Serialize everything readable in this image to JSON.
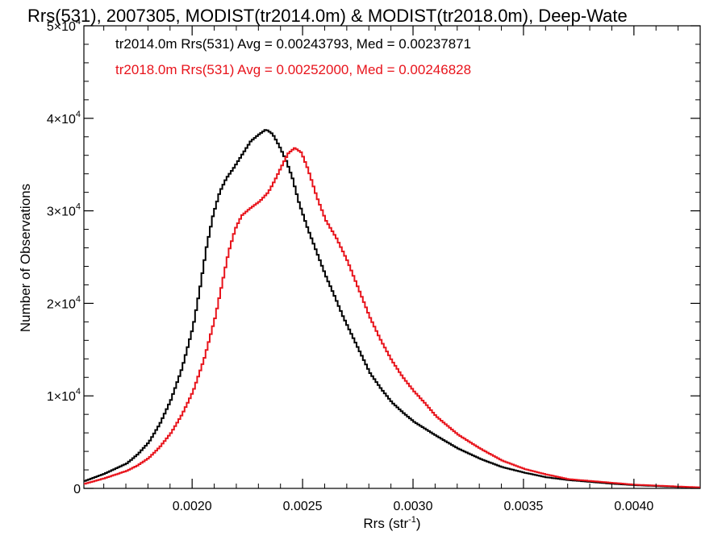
{
  "chart_data": {
    "type": "line",
    "step": true,
    "title": "Rrs(531), 2007305, MODIST(tr2014.0m) & MODIST(tr2018.0m), Deep-Wate",
    "xlabel": "Rrs (str",
    "xlabel_sup": "-1",
    "xlabel_close": ")",
    "ylabel": "Number of Observations",
    "xlim": [
      0.00151,
      0.0043
    ],
    "ylim": [
      0,
      50000
    ],
    "x_ticks": [
      {
        "value": 0.002,
        "label": "0.0020"
      },
      {
        "value": 0.0025,
        "label": "0.0025"
      },
      {
        "value": 0.003,
        "label": "0.0030"
      },
      {
        "value": 0.0035,
        "label": "0.0035"
      },
      {
        "value": 0.004,
        "label": "0.0040"
      }
    ],
    "y_ticks": [
      {
        "value": 0,
        "mant": "0",
        "exp": ""
      },
      {
        "value": 10000,
        "mant": "1×10",
        "exp": "4"
      },
      {
        "value": 20000,
        "mant": "2×10",
        "exp": "4"
      },
      {
        "value": 30000,
        "mant": "3×10",
        "exp": "4"
      },
      {
        "value": 40000,
        "mant": "4×10",
        "exp": "4"
      },
      {
        "value": 50000,
        "mant": "5×10",
        "exp": "4"
      }
    ],
    "grid": false,
    "legend_position": "top-left",
    "series": [
      {
        "name": "tr2014.0m Rrs(531) Avg = 0.00243793, Med = 0.00237871",
        "color": "#000000",
        "points": [
          [
            0.00151,
            800
          ],
          [
            0.0016,
            1600
          ],
          [
            0.0017,
            2700
          ],
          [
            0.00175,
            3700
          ],
          [
            0.0018,
            5000
          ],
          [
            0.00185,
            7000
          ],
          [
            0.0019,
            9600
          ],
          [
            0.00195,
            13000
          ],
          [
            0.002,
            17500
          ],
          [
            0.00203,
            21500
          ],
          [
            0.00206,
            26000
          ],
          [
            0.00209,
            29500
          ],
          [
            0.00212,
            32000
          ],
          [
            0.00215,
            33500
          ],
          [
            0.00218,
            34500
          ],
          [
            0.00222,
            36000
          ],
          [
            0.00226,
            37500
          ],
          [
            0.0023,
            38300
          ],
          [
            0.00233,
            38800
          ],
          [
            0.00236,
            38300
          ],
          [
            0.00239,
            37000
          ],
          [
            0.00242,
            35500
          ],
          [
            0.00245,
            33500
          ],
          [
            0.00248,
            30800
          ],
          [
            0.00252,
            28000
          ],
          [
            0.00256,
            25500
          ],
          [
            0.0026,
            23000
          ],
          [
            0.00264,
            20800
          ],
          [
            0.00268,
            18500
          ],
          [
            0.00272,
            16500
          ],
          [
            0.00276,
            14500
          ],
          [
            0.0028,
            12500
          ],
          [
            0.00285,
            10800
          ],
          [
            0.0029,
            9300
          ],
          [
            0.00295,
            8200
          ],
          [
            0.003,
            7200
          ],
          [
            0.0031,
            5700
          ],
          [
            0.0032,
            4300
          ],
          [
            0.0033,
            3200
          ],
          [
            0.0034,
            2300
          ],
          [
            0.0035,
            1700
          ],
          [
            0.0036,
            1200
          ],
          [
            0.0037,
            900
          ],
          [
            0.0038,
            700
          ],
          [
            0.0039,
            500
          ],
          [
            0.004,
            350
          ],
          [
            0.0041,
            250
          ],
          [
            0.0042,
            150
          ],
          [
            0.0043,
            100
          ]
        ]
      },
      {
        "name": "tr2018.0m Rrs(531) Avg = 0.00252000, Med = 0.00246828",
        "color": "#e8141c",
        "points": [
          [
            0.00151,
            500
          ],
          [
            0.0016,
            1100
          ],
          [
            0.0017,
            1900
          ],
          [
            0.00175,
            2500
          ],
          [
            0.0018,
            3300
          ],
          [
            0.00185,
            4500
          ],
          [
            0.0019,
            6000
          ],
          [
            0.00195,
            8000
          ],
          [
            0.002,
            10500
          ],
          [
            0.00205,
            14000
          ],
          [
            0.0021,
            18500
          ],
          [
            0.00213,
            22000
          ],
          [
            0.00216,
            25500
          ],
          [
            0.00219,
            28000
          ],
          [
            0.00222,
            29500
          ],
          [
            0.00226,
            30300
          ],
          [
            0.0023,
            31000
          ],
          [
            0.00234,
            32000
          ],
          [
            0.00237,
            33300
          ],
          [
            0.0024,
            34800
          ],
          [
            0.00243,
            36200
          ],
          [
            0.00246,
            36800
          ],
          [
            0.00249,
            36300
          ],
          [
            0.00252,
            34500
          ],
          [
            0.00256,
            31500
          ],
          [
            0.0026,
            29000
          ],
          [
            0.00265,
            27000
          ],
          [
            0.0027,
            24500
          ],
          [
            0.00275,
            21500
          ],
          [
            0.0028,
            18500
          ],
          [
            0.00285,
            16000
          ],
          [
            0.0029,
            13800
          ],
          [
            0.00295,
            12000
          ],
          [
            0.003,
            10500
          ],
          [
            0.00305,
            9200
          ],
          [
            0.0031,
            7800
          ],
          [
            0.0032,
            5800
          ],
          [
            0.0033,
            4300
          ],
          [
            0.0034,
            3000
          ],
          [
            0.0035,
            2100
          ],
          [
            0.0036,
            1500
          ],
          [
            0.0037,
            1000
          ],
          [
            0.0038,
            800
          ],
          [
            0.0039,
            600
          ],
          [
            0.004,
            400
          ],
          [
            0.0041,
            300
          ],
          [
            0.0042,
            200
          ],
          [
            0.0043,
            100
          ]
        ]
      }
    ]
  }
}
